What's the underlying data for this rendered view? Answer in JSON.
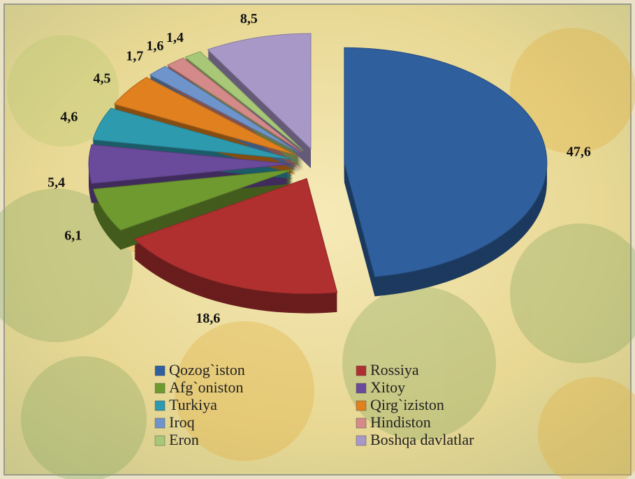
{
  "chart_data": {
    "type": "pie",
    "categories": [
      "Qozog`iston",
      "Rossiya",
      "Afg`oniston",
      "Xitoy",
      "Turkiya",
      "Qirg`iziston",
      "Iroq",
      "Hindiston",
      "Eron",
      "Boshqa davlatlar"
    ],
    "values": [
      47.6,
      18.6,
      6.1,
      5.4,
      4.6,
      4.5,
      1.7,
      1.6,
      1.4,
      8.5
    ],
    "value_labels": [
      "47,6",
      "18,6",
      "6,1",
      "5,4",
      "4,6",
      "4,5",
      "1,7",
      "1,6",
      "1,4",
      "8,5"
    ],
    "colors": [
      "#2f5f9c",
      "#b03030",
      "#6f9a30",
      "#6a4a9a",
      "#2e9aae",
      "#e0801e",
      "#6f94cc",
      "#d48a88",
      "#a8c878",
      "#a898c8"
    ],
    "legend": "bottom"
  }
}
